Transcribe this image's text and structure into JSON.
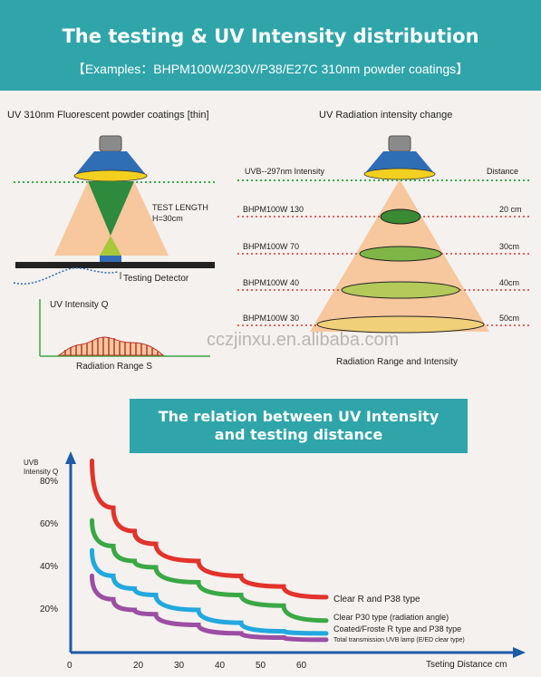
{
  "header": {
    "title": "The testing & UV Intensity distribution",
    "subtitle": "【Examples：BHPM100W/230V/P38/E27C 310nm  powder  coatings】"
  },
  "left_diagram": {
    "caption": "UV 310nm  Fluorescent  powder  coatings [thin]",
    "test_length": "TEST LENGTH",
    "h_value": "H=30cm",
    "detector": "Testing  Detector",
    "mini_y": "UV Intensity Q",
    "mini_x": "Radiation Range  S"
  },
  "right_diagram": {
    "caption": "UV  Radiation  intensity  change",
    "intensity": "UVB--297nm  Intensity",
    "distance": "Distance",
    "rows": [
      {
        "label": "BHPM100W  130",
        "distance": "20 cm"
      },
      {
        "label": "BHPM100W  70",
        "distance": "30cm"
      },
      {
        "label": "BHPM100W  40",
        "distance": "40cm"
      },
      {
        "label": "BHPM100W  30",
        "distance": "50cm"
      }
    ],
    "bottom": "Radiation Range  and  Intensity"
  },
  "watermark": "cczjinxu.en.alibaba.com",
  "relation": {
    "line1": "The relation between UV Intensity",
    "line2": "and testing distance"
  },
  "chart_data": {
    "type": "line",
    "ylabel": "UVB Intensity Q",
    "xlabel": "Tseting Distance  cm",
    "ylabel_line1": "UVB",
    "ylabel_line2": "Intensity Q",
    "yticks": [
      "20%",
      "40%",
      "60%",
      "80%"
    ],
    "xticks": [
      "0",
      "20",
      "30",
      "40",
      "50",
      "60"
    ],
    "series": [
      {
        "name": "Clear R and P38 type",
        "color": "#e2332b",
        "points": [
          [
            5,
            90
          ],
          [
            10,
            68
          ],
          [
            15,
            57
          ],
          [
            20,
            51
          ],
          [
            30,
            43
          ],
          [
            40,
            36
          ],
          [
            50,
            31
          ],
          [
            60,
            26
          ]
        ]
      },
      {
        "name": "Clear P30 type (radiation angle)",
        "color": "#3aa845",
        "points": [
          [
            5,
            62
          ],
          [
            10,
            50
          ],
          [
            15,
            43
          ],
          [
            20,
            40
          ],
          [
            30,
            33
          ],
          [
            40,
            27
          ],
          [
            50,
            22
          ],
          [
            60,
            15
          ]
        ]
      },
      {
        "name": "Coated/Froste R type and P38 type",
        "color": "#22a8df",
        "points": [
          [
            5,
            48
          ],
          [
            10,
            36
          ],
          [
            15,
            30
          ],
          [
            20,
            27
          ],
          [
            30,
            20
          ],
          [
            40,
            14
          ],
          [
            50,
            10
          ],
          [
            60,
            9
          ]
        ]
      },
      {
        "name": "Total transmission UVB lamp (E/ED clear type)",
        "color": "#9b4ea3",
        "points": [
          [
            5,
            36
          ],
          [
            10,
            25
          ],
          [
            15,
            20
          ],
          [
            20,
            18
          ],
          [
            30,
            13
          ],
          [
            40,
            9
          ],
          [
            50,
            7
          ],
          [
            60,
            6
          ]
        ]
      }
    ]
  }
}
